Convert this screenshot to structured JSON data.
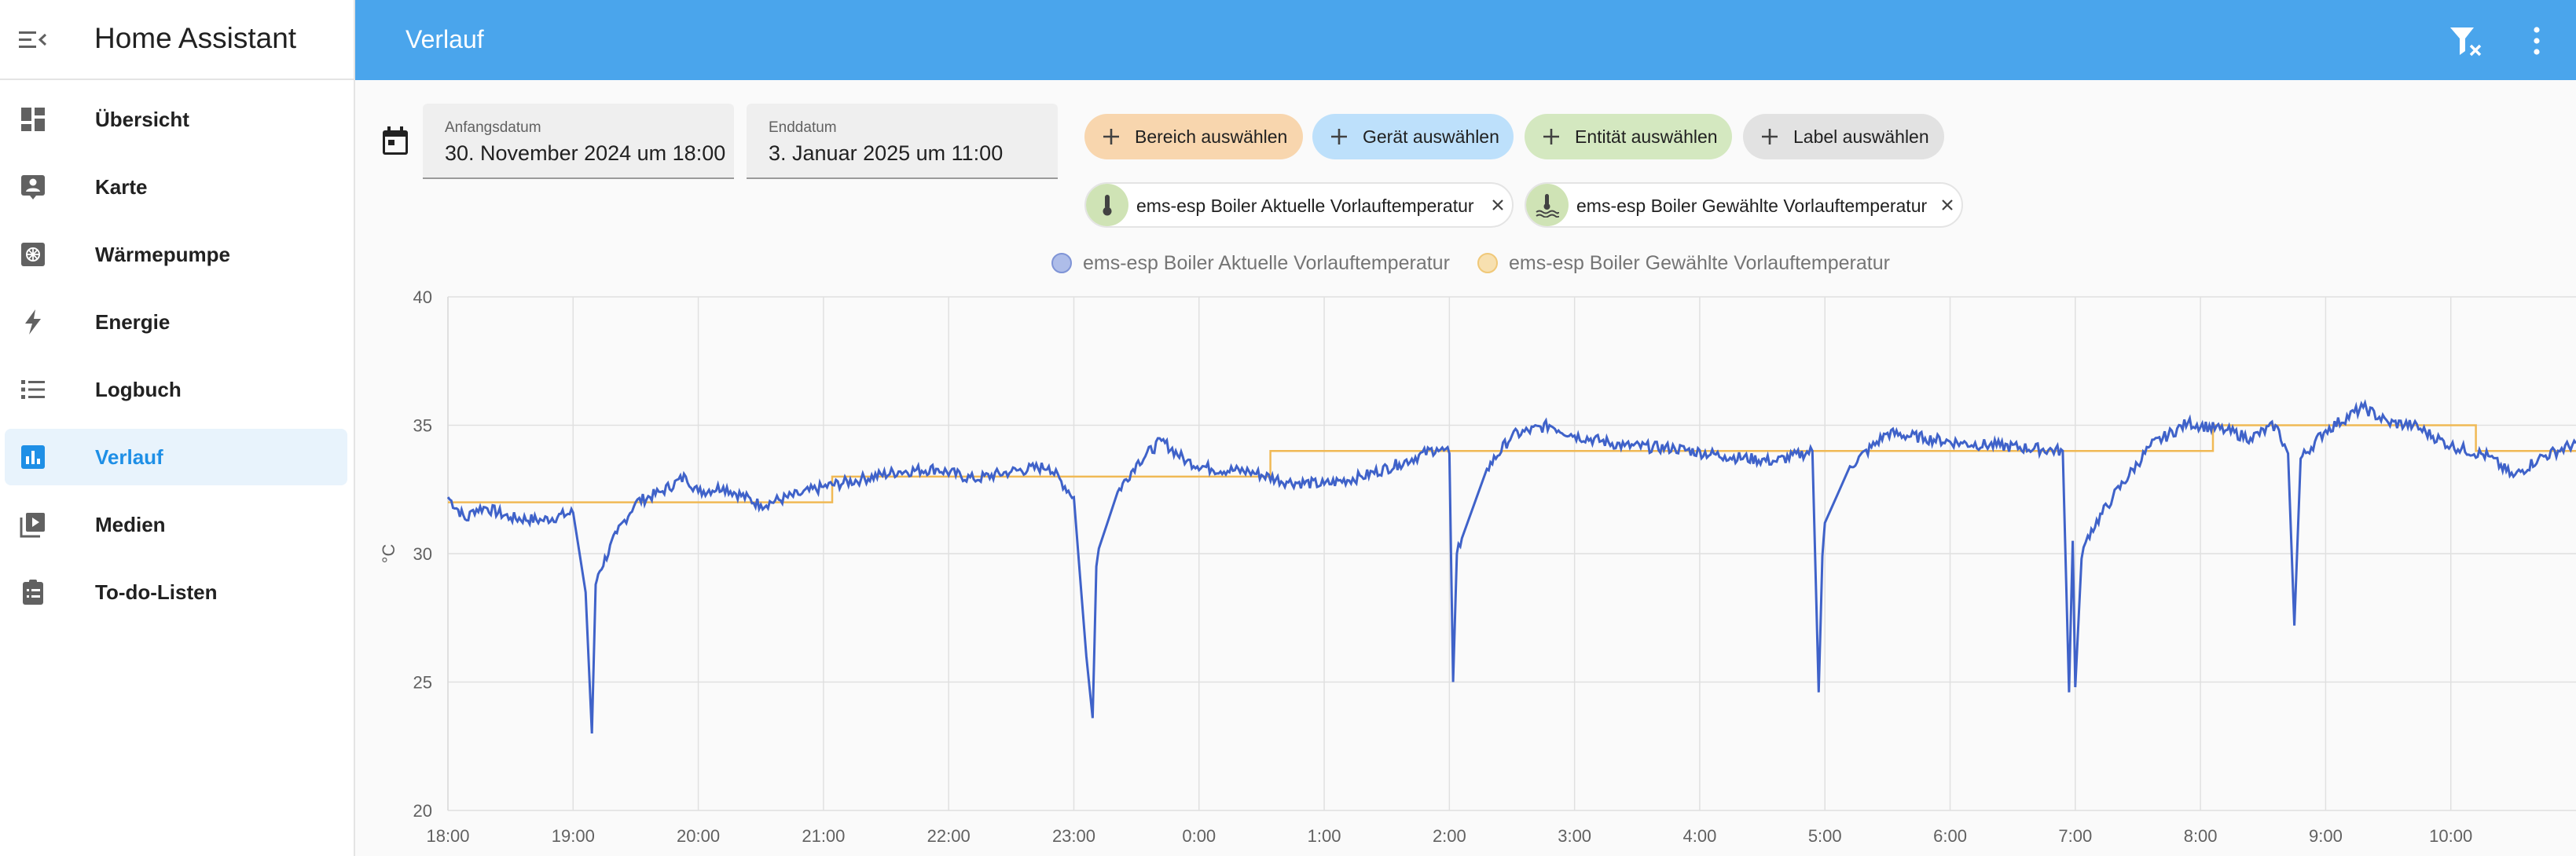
{
  "sidebar": {
    "title": "Home Assistant",
    "items": [
      {
        "label": "Übersicht",
        "icon": "dashboard-icon"
      },
      {
        "label": "Karte",
        "icon": "map-account-icon"
      },
      {
        "label": "Wärmepumpe",
        "icon": "heat-pump-icon"
      },
      {
        "label": "Energie",
        "icon": "lightning-icon"
      },
      {
        "label": "Logbuch",
        "icon": "list-icon"
      },
      {
        "label": "Verlauf",
        "icon": "chart-box-icon",
        "active": true
      },
      {
        "label": "Medien",
        "icon": "play-box-icon"
      },
      {
        "label": "To-do-Listen",
        "icon": "clipboard-list-icon"
      }
    ]
  },
  "header": {
    "title": "Verlauf"
  },
  "dates": {
    "start_label": "Anfangsdatum",
    "start_value": "30. November 2024 um 18:00",
    "end_label": "Enddatum",
    "end_value": "3. Januar 2025 um 11:00"
  },
  "pickers": {
    "area": "Bereich auswählen",
    "device": "Gerät auswählen",
    "entity": "Entität auswählen",
    "label": "Label auswählen"
  },
  "entities": [
    {
      "name": "ems-esp Boiler Aktuelle Vorlauftemperatur",
      "icon": "thermometer-icon"
    },
    {
      "name": "ems-esp Boiler Gewählte Vorlauftemperatur",
      "icon": "water-thermometer-icon"
    }
  ],
  "colors": {
    "accent": "#4aa5ec",
    "series_actual": "#3f62c9",
    "series_target": "#f0b955",
    "chip_area": "#f8d6ae",
    "chip_device": "#bde0fb",
    "chip_entity": "#d4e8c0",
    "chip_label": "#e2e2e2"
  },
  "chart_data": {
    "type": "line",
    "ylabel": "°C",
    "ylim": [
      20,
      40
    ],
    "yticks": [
      20,
      25,
      30,
      35,
      40
    ],
    "x_ticks": [
      "18:00",
      "19:00",
      "20:00",
      "21:00",
      "22:00",
      "23:00",
      "0:00",
      "1:00",
      "2:00",
      "3:00",
      "4:00",
      "5:00",
      "6:00",
      "7:00",
      "8:00",
      "9:00",
      "10:00"
    ],
    "xlim_hours": [
      0,
      17
    ],
    "grid": true,
    "legend_position": "top-center",
    "series": [
      {
        "name": "ems-esp Boiler Aktuelle Vorlauftemperatur",
        "x": [
          0,
          0.15,
          0.2,
          0.3,
          0.5,
          0.75,
          1.0,
          1.1,
          1.15,
          1.18,
          1.2,
          1.35,
          1.5,
          1.7,
          1.9,
          2.0,
          2.2,
          2.5,
          2.8,
          3.0,
          3.3,
          3.6,
          3.9,
          4.2,
          4.5,
          4.8,
          5.0,
          5.1,
          5.15,
          5.18,
          5.2,
          5.35,
          5.5,
          5.7,
          5.9,
          6.1,
          6.4,
          6.7,
          7.0,
          7.3,
          7.6,
          7.9,
          8.0,
          8.03,
          8.06,
          8.1,
          8.3,
          8.5,
          8.8,
          9.0,
          9.4,
          9.8,
          10.2,
          10.6,
          10.9,
          10.95,
          10.98,
          11.0,
          11.2,
          11.5,
          11.8,
          12.1,
          12.4,
          12.9,
          12.95,
          12.98,
          13.0,
          13.05,
          13.1,
          13.3,
          13.6,
          13.9,
          14.2,
          14.4,
          14.6,
          14.7,
          14.75,
          14.8,
          15.0,
          15.3,
          15.5,
          15.7,
          16.0,
          16.3,
          16.5,
          16.7,
          17.0
        ],
        "values": [
          32.2,
          31.3,
          31.7,
          31.8,
          31.4,
          31.3,
          31.6,
          28.5,
          23.0,
          28.8,
          29.2,
          30.8,
          32.0,
          32.4,
          33.0,
          32.4,
          32.6,
          31.9,
          32.3,
          32.6,
          32.9,
          33.2,
          33.3,
          32.9,
          33.2,
          33.4,
          32.2,
          26.0,
          23.6,
          29.5,
          30.2,
          32.4,
          33.5,
          34.4,
          33.6,
          33.3,
          33.2,
          32.8,
          32.7,
          33.0,
          33.5,
          34.1,
          33.9,
          25.0,
          30.0,
          30.6,
          33.3,
          34.6,
          35.0,
          34.6,
          34.2,
          34.1,
          33.8,
          33.6,
          34.0,
          24.6,
          29.9,
          31.2,
          33.4,
          34.7,
          34.5,
          34.3,
          34.2,
          34.0,
          24.6,
          30.5,
          24.8,
          29.8,
          30.7,
          32.2,
          34.2,
          35.1,
          34.8,
          34.5,
          35.0,
          33.9,
          27.2,
          33.7,
          34.8,
          35.7,
          35.1,
          35.0,
          34.2,
          33.8,
          33.0,
          33.7,
          34.3
        ]
      },
      {
        "name": "ems-esp Boiler Gewählte Vorlauftemperatur",
        "x": [
          0,
          1.0,
          2.0,
          3.0,
          3.07,
          4.0,
          6.1,
          6.5,
          6.57,
          7.0,
          8.0,
          9.0,
          14.0,
          14.1,
          14.2,
          15.5,
          16.0,
          16.2,
          17.0
        ],
        "values": [
          32.0,
          32.0,
          32.0,
          32.0,
          33.0,
          33.0,
          33.0,
          33.0,
          34.0,
          34.0,
          34.0,
          34.0,
          34.0,
          35.0,
          35.0,
          35.0,
          35.0,
          34.0,
          34.0
        ]
      }
    ]
  }
}
